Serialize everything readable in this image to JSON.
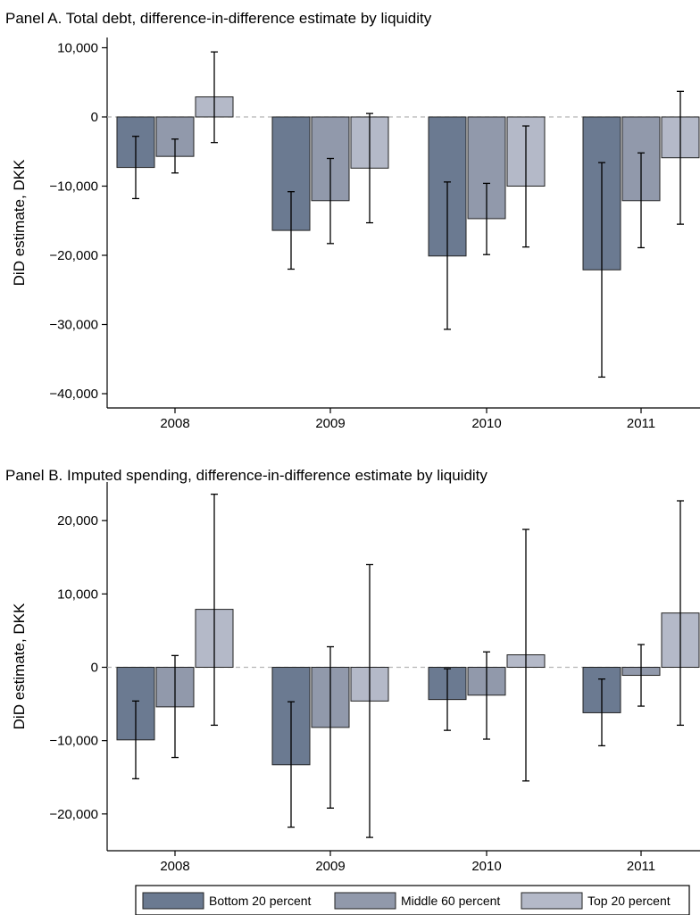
{
  "legend": {
    "items": [
      {
        "label": "Bottom 20 percent",
        "color": "#6b7a91"
      },
      {
        "label": "Middle 60 percent",
        "color": "#9199ab"
      },
      {
        "label": "Top 20 percent",
        "color": "#b4b9c8"
      }
    ]
  },
  "chart_data": [
    {
      "type": "bar",
      "title": "Panel A. Total debt, difference-in-difference estimate by liquidity",
      "xlabel": "",
      "ylabel": "DiD estimate, DKK",
      "ylim": [
        -42000,
        11000
      ],
      "yticks": [
        10000,
        0,
        -10000,
        -20000,
        -30000,
        -40000
      ],
      "ytick_labels": [
        "10,000",
        "0",
        "−10,000",
        "−20,000",
        "−30,000",
        "−40,000"
      ],
      "categories": [
        "2008",
        "2009",
        "2010",
        "2011"
      ],
      "zero_line": "dashed",
      "grid": false,
      "series": [
        {
          "name": "Bottom 20 percent",
          "values": [
            -7300,
            -16400,
            -20100,
            -22100
          ],
          "ci_low": [
            -11800,
            -22000,
            -30700,
            -37600
          ],
          "ci_high": [
            -2800,
            -10800,
            -9400,
            -6600
          ]
        },
        {
          "name": "Middle 60 percent",
          "values": [
            -5700,
            -12100,
            -14700,
            -12100
          ],
          "ci_low": [
            -8100,
            -18300,
            -19900,
            -18900
          ],
          "ci_high": [
            -3200,
            -6000,
            -9600,
            -5200
          ]
        },
        {
          "name": "Top 20 percent",
          "values": [
            2900,
            -7400,
            -10000,
            -5900
          ],
          "ci_low": [
            -3700,
            -15300,
            -18800,
            -15500
          ],
          "ci_high": [
            9400,
            500,
            -1300,
            3700
          ]
        }
      ]
    },
    {
      "type": "bar",
      "title": "Panel B. Imputed spending, difference-in-difference estimate by liquidity",
      "xlabel": "",
      "ylabel": "DiD estimate, DKK",
      "ylim": [
        -25000,
        25000
      ],
      "yticks": [
        20000,
        10000,
        0,
        -10000,
        -20000
      ],
      "ytick_labels": [
        "20,000",
        "10,000",
        "0",
        "−10,000",
        "−20,000"
      ],
      "categories": [
        "2008",
        "2009",
        "2010",
        "2011"
      ],
      "zero_line": "dashed",
      "grid": false,
      "series": [
        {
          "name": "Bottom 20 percent",
          "values": [
            -9900,
            -13300,
            -4400,
            -6200
          ],
          "ci_low": [
            -15200,
            -21800,
            -8600,
            -10700
          ],
          "ci_high": [
            -4600,
            -4700,
            -200,
            -1600
          ]
        },
        {
          "name": "Middle 60 percent",
          "values": [
            -5400,
            -8200,
            -3800,
            -1100
          ],
          "ci_low": [
            -12300,
            -19200,
            -9800,
            -5300
          ],
          "ci_high": [
            1600,
            2800,
            2100,
            3100
          ]
        },
        {
          "name": "Top 20 percent",
          "values": [
            7900,
            -4600,
            1700,
            7400
          ],
          "ci_low": [
            -7900,
            -23200,
            -15500,
            -7900
          ],
          "ci_high": [
            23600,
            14000,
            18800,
            22700
          ]
        }
      ]
    }
  ]
}
